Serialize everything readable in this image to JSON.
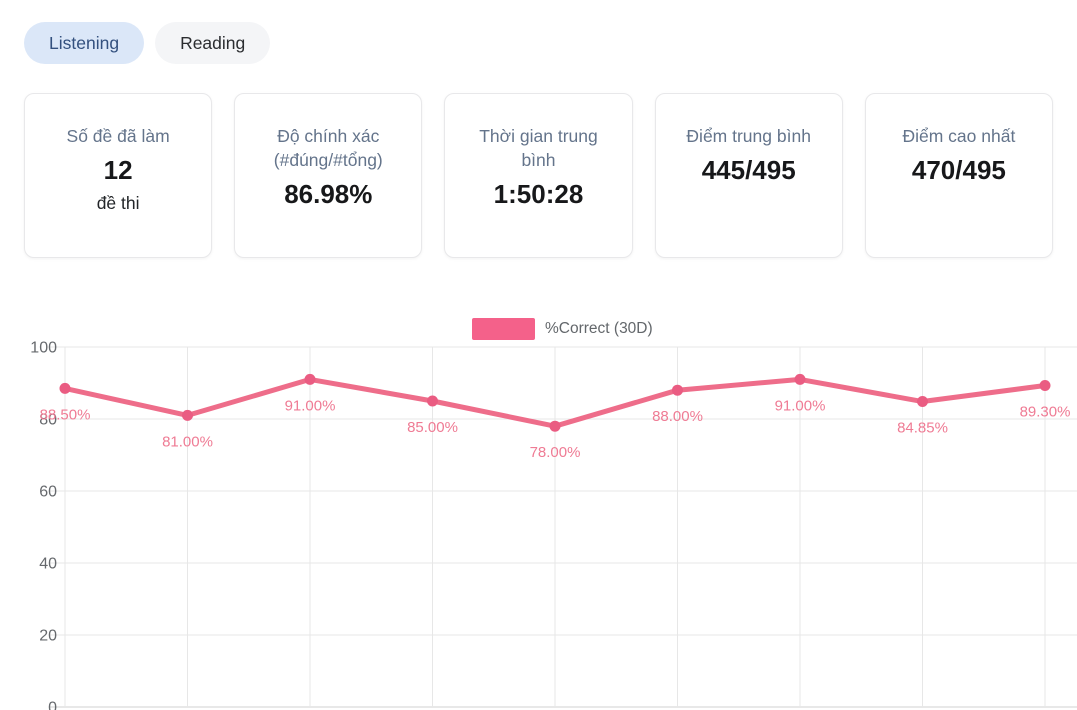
{
  "tabs": {
    "items": [
      {
        "label": "Listening",
        "active": true
      },
      {
        "label": "Reading",
        "active": false
      }
    ]
  },
  "stats": [
    {
      "title": "Số đề đã làm",
      "value": "12",
      "subtitle": "đề thi"
    },
    {
      "title": "Độ chính xác (#đúng/#tổng)",
      "value": "86.98%",
      "subtitle": ""
    },
    {
      "title": "Thời gian trung bình",
      "value": "1:50:28",
      "subtitle": ""
    },
    {
      "title": "Điểm trung bình",
      "value": "445/495",
      "subtitle": ""
    },
    {
      "title": "Điểm cao nhất",
      "value": "470/495",
      "subtitle": ""
    }
  ],
  "chart_data": {
    "type": "line",
    "title": "",
    "legend": [
      {
        "label": "%Correct (30D)",
        "color": "#f4618a"
      }
    ],
    "legend_position": "top",
    "series": [
      {
        "name": "%Correct (30D)",
        "values": [
          88.5,
          81.0,
          91.0,
          85.0,
          78.0,
          88.0,
          91.0,
          84.85,
          89.3
        ],
        "point_labels": [
          "88.50%",
          "81.00%",
          "91.00%",
          "85.00%",
          "78.00%",
          "88.00%",
          "91.00%",
          "84.85%",
          "89.30%"
        ]
      }
    ],
    "xlabel": "",
    "ylabel": "",
    "ylim": [
      0,
      100
    ],
    "y_ticks": [
      100,
      80,
      60,
      40,
      20,
      0
    ],
    "grid": true,
    "colors": {
      "line": "#ee6d8a",
      "point": "#ea5c82",
      "point_label": "#ef7b94",
      "grid": "#e7e7e7",
      "baseline": "#d2d2d2",
      "tick_label": "#66696d"
    }
  }
}
